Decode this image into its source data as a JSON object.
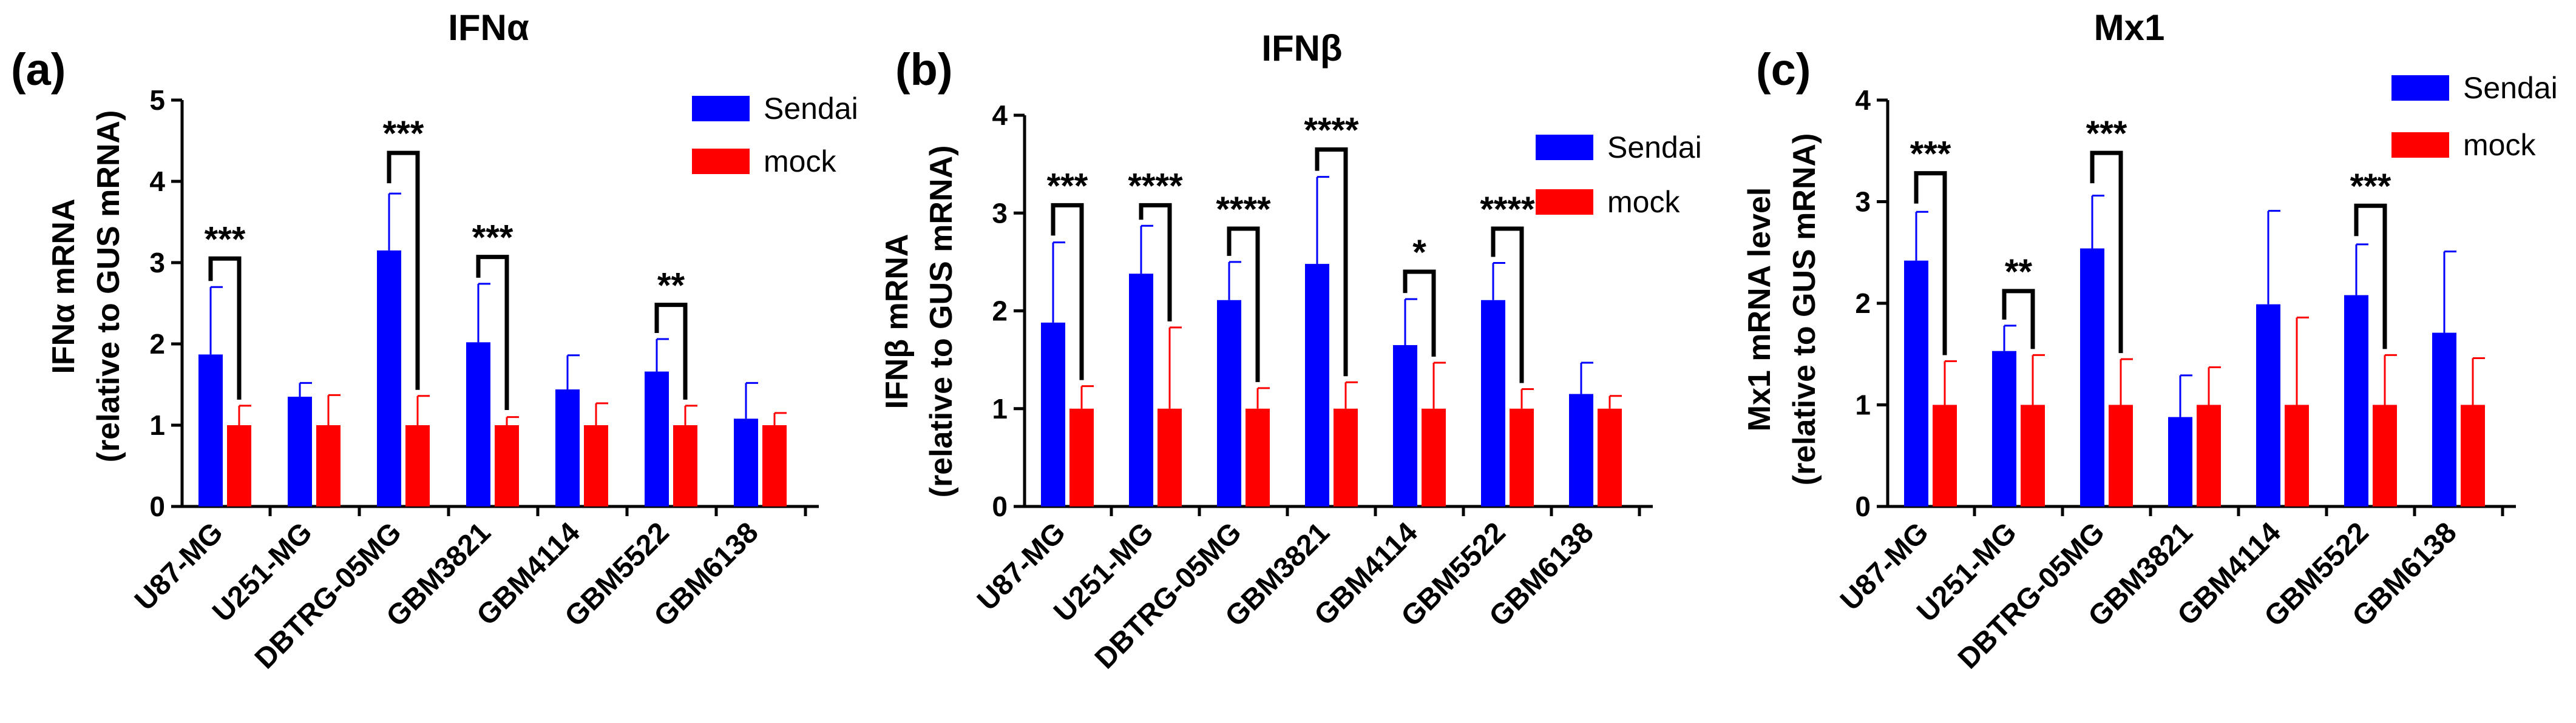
{
  "colors": {
    "sendai": "#0000ff",
    "mock": "#ff0000",
    "axis": "#000000"
  },
  "chart_data": [
    {
      "type": "bar",
      "panel": "(a)",
      "title": "IFNα",
      "ylabel_line1": "IFNα mRNA",
      "ylabel_line2": "(relative to GUS mRNA)",
      "ylim": [
        0,
        5
      ],
      "yticks": [
        0,
        1,
        2,
        3,
        4,
        5
      ],
      "categories": [
        "U87-MG",
        "U251-MG",
        "DBTRG-05MG",
        "GBM3821",
        "GBM4114",
        "GBM5522",
        "GBM6138"
      ],
      "series": [
        {
          "name": "Sendai",
          "values": [
            1.87,
            1.35,
            3.15,
            2.02,
            1.44,
            1.66,
            1.08
          ],
          "errors": [
            0.83,
            0.17,
            0.7,
            0.72,
            0.42,
            0.4,
            0.44
          ]
        },
        {
          "name": "mock",
          "values": [
            1.0,
            1.0,
            1.0,
            1.0,
            1.0,
            1.0,
            1.0
          ],
          "errors": [
            0.24,
            0.37,
            0.36,
            0.1,
            0.27,
            0.24,
            0.15
          ]
        }
      ],
      "significance": [
        {
          "index": 0,
          "label": "***",
          "level": 3.05
        },
        {
          "index": 2,
          "label": "***",
          "level": 4.35
        },
        {
          "index": 3,
          "label": "***",
          "level": 3.07
        },
        {
          "index": 5,
          "label": "**",
          "level": 2.48
        }
      ]
    },
    {
      "type": "bar",
      "panel": "(b)",
      "title": "IFNβ",
      "ylabel_line1": "IFNβ mRNA",
      "ylabel_line2": "(relative to GUS mRNA)",
      "ylim": [
        0,
        4
      ],
      "yticks": [
        0,
        1,
        2,
        3,
        4
      ],
      "categories": [
        "U87-MG",
        "U251-MG",
        "DBTRG-05MG",
        "GBM3821",
        "GBM4114",
        "GBM5522",
        "GBM6138"
      ],
      "series": [
        {
          "name": "Sendai",
          "values": [
            1.88,
            2.38,
            2.11,
            2.48,
            1.65,
            2.11,
            1.15
          ],
          "errors": [
            0.82,
            0.49,
            0.39,
            0.89,
            0.47,
            0.38,
            0.32
          ]
        },
        {
          "name": "mock",
          "values": [
            1.0,
            1.0,
            1.0,
            1.0,
            1.0,
            1.0,
            1.0
          ],
          "errors": [
            0.23,
            0.83,
            0.21,
            0.27,
            0.47,
            0.2,
            0.13
          ]
        }
      ],
      "significance": [
        {
          "index": 0,
          "label": "***",
          "level": 3.08
        },
        {
          "index": 1,
          "label": "****",
          "level": 3.08
        },
        {
          "index": 2,
          "label": "****",
          "level": 2.84
        },
        {
          "index": 3,
          "label": "****",
          "level": 3.65
        },
        {
          "index": 4,
          "label": "*",
          "level": 2.4
        },
        {
          "index": 5,
          "label": "****",
          "level": 2.84
        }
      ]
    },
    {
      "type": "bar",
      "panel": "(c)",
      "title": "Mx1",
      "ylabel_line1": "Mx1 mRNA level",
      "ylabel_line2": "(relative to GUS mRNA)",
      "ylim": [
        0,
        4
      ],
      "yticks": [
        0,
        1,
        2,
        3,
        4
      ],
      "categories": [
        "U87-MG",
        "U251-MG",
        "DBTRG-05MG",
        "GBM3821",
        "GBM4114",
        "GBM5522",
        "GBM6138"
      ],
      "series": [
        {
          "name": "Sendai",
          "values": [
            2.42,
            1.53,
            2.54,
            0.88,
            1.99,
            2.08,
            1.71
          ],
          "errors": [
            0.48,
            0.25,
            0.52,
            0.41,
            0.92,
            0.5,
            0.8
          ]
        },
        {
          "name": "mock",
          "values": [
            1.0,
            1.0,
            1.0,
            1.0,
            1.0,
            1.0,
            1.0
          ],
          "errors": [
            0.43,
            0.49,
            0.45,
            0.37,
            0.86,
            0.49,
            0.46
          ]
        }
      ],
      "significance": [
        {
          "index": 0,
          "label": "***",
          "level": 3.28
        },
        {
          "index": 1,
          "label": "**",
          "level": 2.12
        },
        {
          "index": 2,
          "label": "***",
          "level": 3.48
        },
        {
          "index": 5,
          "label": "***",
          "level": 2.96
        }
      ]
    }
  ]
}
